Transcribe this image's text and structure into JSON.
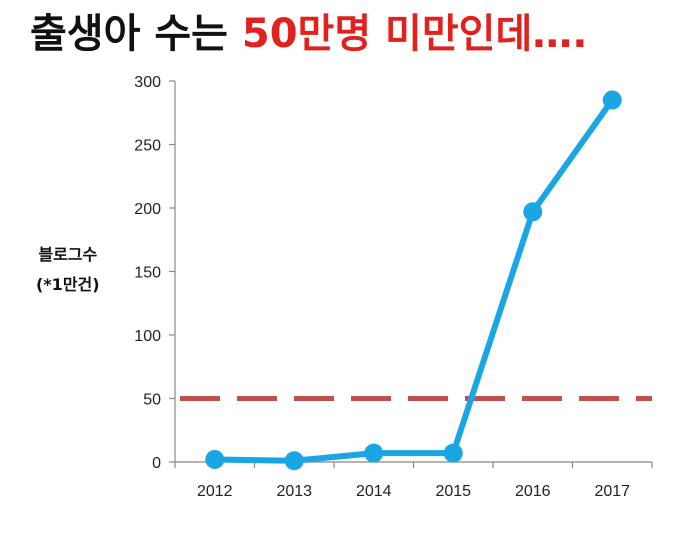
{
  "title": {
    "part1": "출생아 수는 ",
    "part2": "50만명 미만인데…."
  },
  "colors": {
    "title_text": "#111111",
    "title_highlight": "#e0211d",
    "series_line": "#1aa6e4",
    "reference_line": "#c0504d",
    "axis": "#888888"
  },
  "chart_data": {
    "type": "line",
    "title": "출생아 수는 50만명 미만인데….",
    "ylabel_line1": "블로그수",
    "ylabel_line2": "(*1만건)",
    "xlabel": "",
    "categories": [
      "2012",
      "2013",
      "2014",
      "2015",
      "2016",
      "2017"
    ],
    "series": [
      {
        "values": [
          2,
          1,
          7,
          7,
          197,
          285
        ],
        "color": "#1aa6e4"
      }
    ],
    "reference_line": {
      "value": 50,
      "style": "dashed",
      "color": "#c0504d"
    },
    "ylim": [
      0,
      300
    ],
    "yticks": [
      0,
      50,
      100,
      150,
      200,
      250,
      300
    ],
    "grid": false,
    "legend": "none"
  }
}
